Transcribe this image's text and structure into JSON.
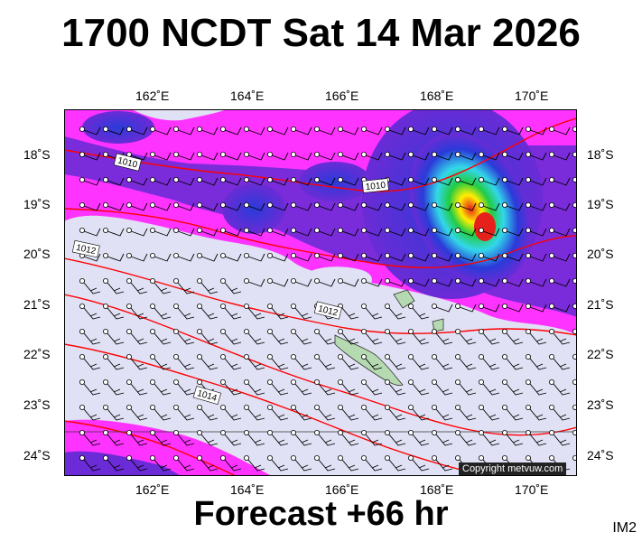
{
  "title": "1700 NCDT Sat 14 Mar 2026",
  "forecast_label": "Forecast +66 hr",
  "image_code": "IM2",
  "copyright": "Copyright metvuw.com",
  "lon_ticks": [
    "162˚E",
    "164˚E",
    "166˚E",
    "168˚E",
    "170˚E"
  ],
  "lat_ticks": [
    "18˚S",
    "19˚S",
    "20˚S",
    "21˚S",
    "22˚S",
    "23˚S",
    "24˚S"
  ],
  "isobar_labels": [
    "1010",
    "1010",
    "1012",
    "1012",
    "1014"
  ],
  "colors": {
    "land": "#e1e1f5",
    "isobar": "#ff0000",
    "rain_low": "#ff33ff",
    "rain_mid": "#6b2bd6",
    "rain_high": "#2a3bd8",
    "rain_cyan": "#33d7ea",
    "rain_green": "#22cc44",
    "rain_yellow": "#ffee00",
    "rain_red": "#e6201a"
  }
}
